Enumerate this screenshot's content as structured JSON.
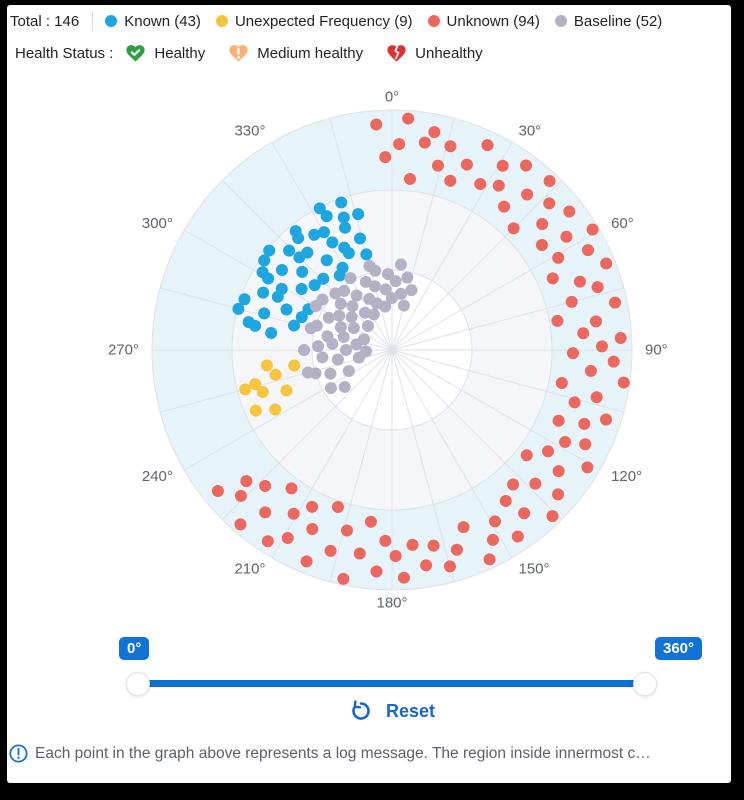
{
  "header": {
    "total_label": "Total : 146",
    "legend": [
      {
        "label": "Known (43)",
        "color": "#1ea6e0"
      },
      {
        "label": "Unexpected Frequency (9)",
        "color": "#f7c43d"
      },
      {
        "label": "Unknown (94)",
        "color": "#ec685e"
      },
      {
        "label": "Baseline (52)",
        "color": "#b4b1c4"
      }
    ],
    "health": {
      "label": "Health Status :",
      "items": [
        {
          "label": "Healthy",
          "icon": "healthy-heart-check-icon",
          "color": "#2f9e44"
        },
        {
          "label": "Medium healthy",
          "icon": "medium-healthy-heart-exclamation-icon",
          "color": "#f9b178"
        },
        {
          "label": "Unhealthy",
          "icon": "unhealthy-broken-heart-icon",
          "color": "#e03131"
        }
      ]
    }
  },
  "chart_data": {
    "type": "scatter",
    "subtype": "polar",
    "title": "Log message anomaly polar scatter",
    "angle_ticks": [
      "0°",
      "30°",
      "60°",
      "90°",
      "120°",
      "150°",
      "180°",
      "210°",
      "240°",
      "270°",
      "300°",
      "330°"
    ],
    "spoke_step_deg": 15,
    "radial_rings": [
      80,
      160,
      240
    ],
    "radial_axis_max": 240,
    "band_colors": [
      "#ffffff",
      "#f5f6fa",
      "#e6f3f9"
    ],
    "grid_color": "#dee1e8",
    "tick_color": "#5f646b",
    "legend_position": "top",
    "series": [
      {
        "name": "Known",
        "color": "#1ea6e0",
        "count": 43,
        "points": [
          [
            278,
            122
          ],
          [
            281,
            146
          ],
          [
            284,
            101
          ],
          [
            286,
            133
          ],
          [
            289,
            156
          ],
          [
            291,
            113
          ],
          [
            294,
            141
          ],
          [
            296,
            93
          ],
          [
            299,
            126
          ],
          [
            301,
            151
          ],
          [
            304,
            109
          ],
          [
            306,
            136
          ],
          [
            309,
            158
          ],
          [
            311,
            119
          ],
          [
            314,
            143
          ],
          [
            316,
            99
          ],
          [
            319,
            129
          ],
          [
            321,
            153
          ],
          [
            324,
            111
          ],
          [
            326,
            139
          ],
          [
            329,
            96
          ],
          [
            331,
            123
          ],
          [
            334,
            149
          ],
          [
            336,
            106
          ],
          [
            339,
            131
          ],
          [
            341,
            156
          ],
          [
            344,
            116
          ],
          [
            346,
            140
          ],
          [
            280,
            139
          ],
          [
            285,
            159
          ],
          [
            290,
            96
          ],
          [
            295,
            126
          ],
          [
            300,
            143
          ],
          [
            305,
            156
          ],
          [
            310,
            101
          ],
          [
            315,
            131
          ],
          [
            320,
            146
          ],
          [
            325,
            91
          ],
          [
            330,
            136
          ],
          [
            335,
            113
          ],
          [
            340,
            141
          ],
          [
            345,
            99
          ],
          [
            333,
            159
          ]
        ]
      },
      {
        "name": "Unexpected Frequency",
        "color": "#f7c43d",
        "count": 9,
        "points": [
          [
            243,
            131
          ],
          [
            246,
            149
          ],
          [
            249,
            113
          ],
          [
            252,
            136
          ],
          [
            255,
            152
          ],
          [
            258,
            119
          ],
          [
            261,
            99
          ],
          [
            263,
            126
          ],
          [
            256,
            141
          ]
        ]
      },
      {
        "name": "Unknown",
        "color": "#ec685e",
        "count": 94,
        "points": [
          [
            356,
            226
          ],
          [
            358,
            193
          ],
          [
            2,
            206
          ],
          [
            4,
            232
          ],
          [
            6,
            172
          ],
          [
            9,
            210
          ],
          [
            11,
            222
          ],
          [
            14,
            190
          ],
          [
            16,
            212
          ],
          [
            19,
            179
          ],
          [
            22,
            200
          ],
          [
            25,
            226
          ],
          [
            28,
            188
          ],
          [
            31,
            215
          ],
          [
            33,
            196
          ],
          [
            36,
            228
          ],
          [
            38,
            182
          ],
          [
            41,
            206
          ],
          [
            43,
            231
          ],
          [
            45,
            172
          ],
          [
            47,
            215
          ],
          [
            50,
            196
          ],
          [
            52,
            225
          ],
          [
            55,
            183
          ],
          [
            57,
            208
          ],
          [
            59,
            234
          ],
          [
            61,
            190
          ],
          [
            63,
            220
          ],
          [
            66,
            176
          ],
          [
            68,
            231
          ],
          [
            70,
            200
          ],
          [
            73,
            215
          ],
          [
            75,
            186
          ],
          [
            78,
            228
          ],
          [
            80,
            168
          ],
          [
            82,
            206
          ],
          [
            85,
            192
          ],
          [
            87,
            229
          ],
          [
            89,
            210
          ],
          [
            91,
            181
          ],
          [
            93,
            222
          ],
          [
            96,
            200
          ],
          [
            98,
            234
          ],
          [
            101,
            173
          ],
          [
            103,
            210
          ],
          [
            106,
            190
          ],
          [
            108,
            225
          ],
          [
            111,
            206
          ],
          [
            113,
            181
          ],
          [
            116,
            215
          ],
          [
            118,
            196
          ],
          [
            121,
            228
          ],
          [
            123,
            186
          ],
          [
            126,
            206
          ],
          [
            128,
            171
          ],
          [
            131,
            220
          ],
          [
            133,
            196
          ],
          [
            136,
            231
          ],
          [
            138,
            181
          ],
          [
            141,
            210
          ],
          [
            143,
            189
          ],
          [
            146,
            225
          ],
          [
            149,
            200
          ],
          [
            152,
            215
          ],
          [
            155,
            231
          ],
          [
            158,
            191
          ],
          [
            162,
            210
          ],
          [
            165,
            224
          ],
          [
            168,
            200
          ],
          [
            171,
            218
          ],
          [
            174,
            196
          ],
          [
            177,
            228
          ],
          [
            179,
            206
          ],
          [
            182,
            191
          ],
          [
            184,
            222
          ],
          [
            187,
            173
          ],
          [
            189,
            206
          ],
          [
            192,
            234
          ],
          [
            194,
            186
          ],
          [
            197,
            210
          ],
          [
            199,
            166
          ],
          [
            202,
            228
          ],
          [
            204,
            196
          ],
          [
            207,
            176
          ],
          [
            209,
            215
          ],
          [
            211,
            191
          ],
          [
            213,
            228
          ],
          [
            216,
            171
          ],
          [
            218,
            206
          ],
          [
            221,
            231
          ],
          [
            223,
            186
          ],
          [
            226,
            210
          ],
          [
            228,
            196
          ],
          [
            231,
            224
          ]
        ]
      },
      {
        "name": "Baseline",
        "color": "#b4b1c4",
        "count": 52,
        "points": [
          [
            232,
            60
          ],
          [
            238,
            72
          ],
          [
            244,
            48
          ],
          [
            249,
            66
          ],
          [
            253,
            80
          ],
          [
            257,
            34
          ],
          [
            260,
            55
          ],
          [
            264,
            70
          ],
          [
            267,
            26
          ],
          [
            270,
            46
          ],
          [
            273,
            74
          ],
          [
            276,
            60
          ],
          [
            279,
            36
          ],
          [
            282,
            66
          ],
          [
            285,
            50
          ],
          [
            288,
            79
          ],
          [
            291,
            30
          ],
          [
            294,
            56
          ],
          [
            297,
            71
          ],
          [
            300,
            44
          ],
          [
            303,
            63
          ],
          [
            306,
            86
          ],
          [
            309,
            52
          ],
          [
            312,
            69
          ],
          [
            315,
            34
          ],
          [
            318,
            59
          ],
          [
            321,
            76
          ],
          [
            324,
            46
          ],
          [
            327,
            65
          ],
          [
            330,
            83
          ],
          [
            333,
            40
          ],
          [
            336,
            56
          ],
          [
            339,
            73
          ],
          [
            342,
            49
          ],
          [
            345,
            66
          ],
          [
            348,
            81
          ],
          [
            351,
            44
          ],
          [
            354,
            61
          ],
          [
            357,
            76
          ],
          [
            0,
            52
          ],
          [
            3,
            69
          ],
          [
            6,
            86
          ],
          [
            9,
            57
          ],
          [
            12,
            74
          ],
          [
            15,
            46
          ],
          [
            18,
            63
          ],
          [
            255,
            87
          ],
          [
            270,
            88
          ],
          [
            285,
            84
          ],
          [
            300,
            88
          ],
          [
            315,
            80
          ],
          [
            345,
            87
          ]
        ]
      }
    ]
  },
  "slider": {
    "min_label": "0°",
    "max_label": "360°",
    "min_value": 0,
    "max_value": 360,
    "track_color": "#0e6fd6"
  },
  "reset": {
    "label": "Reset"
  },
  "footer_note": "Each point in the graph above represents a log message. The region inside innermost c…"
}
